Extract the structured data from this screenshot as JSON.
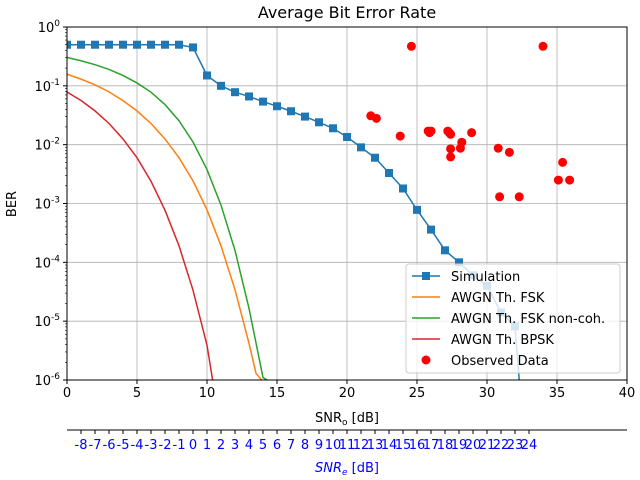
{
  "chart_data": {
    "type": "line",
    "title": "Average Bit Error Rate",
    "xlabel_main": "SNR",
    "xlabel_sub": "o",
    "xlabel_unit": " [dB]",
    "ylabel": "BER",
    "x2label_main": "SNR",
    "x2label_sub": "e",
    "x2label_unit": " [dB]",
    "xlim": [
      0,
      40
    ],
    "ylim": [
      1e-06,
      1
    ],
    "yscale": "log",
    "grid": true,
    "legend_position": "lower-right",
    "xticks": [
      0,
      5,
      10,
      15,
      20,
      25,
      30,
      35,
      40
    ],
    "yticks": [
      {
        "value": 1,
        "label": "10^0"
      },
      {
        "value": 0.1,
        "label": "10^-1"
      },
      {
        "value": 0.01,
        "label": "10^-2"
      },
      {
        "value": 0.001,
        "label": "10^-3"
      },
      {
        "value": 0.0001,
        "label": "10^-4"
      },
      {
        "value": 1e-05,
        "label": "10^-5"
      },
      {
        "value": 1e-06,
        "label": "10^-6"
      }
    ],
    "secondary_axis": {
      "color": "#0000ff",
      "ticks": [
        {
          "at": 1,
          "label": "-8"
        },
        {
          "at": 2,
          "label": "-7"
        },
        {
          "at": 3,
          "label": "-6"
        },
        {
          "at": 4,
          "label": "-5"
        },
        {
          "at": 5,
          "label": "-4"
        },
        {
          "at": 6,
          "label": "-3"
        },
        {
          "at": 7,
          "label": "-2"
        },
        {
          "at": 8,
          "label": "-1"
        },
        {
          "at": 9,
          "label": "0"
        },
        {
          "at": 10,
          "label": "1"
        },
        {
          "at": 11,
          "label": "2"
        },
        {
          "at": 12,
          "label": "3"
        },
        {
          "at": 13,
          "label": "4"
        },
        {
          "at": 14,
          "label": "5"
        },
        {
          "at": 15,
          "label": "6"
        },
        {
          "at": 16,
          "label": "7"
        },
        {
          "at": 17,
          "label": "8"
        },
        {
          "at": 18,
          "label": "9"
        },
        {
          "at": 19,
          "label": "10"
        },
        {
          "at": 20,
          "label": "11"
        },
        {
          "at": 21,
          "label": "12"
        },
        {
          "at": 22,
          "label": "13"
        },
        {
          "at": 23,
          "label": "14"
        },
        {
          "at": 24,
          "label": "15"
        },
        {
          "at": 25,
          "label": "16"
        },
        {
          "at": 26,
          "label": "17"
        },
        {
          "at": 27,
          "label": "18"
        },
        {
          "at": 28,
          "label": "19"
        },
        {
          "at": 29,
          "label": "20"
        },
        {
          "at": 30,
          "label": "21"
        },
        {
          "at": 31,
          "label": "22"
        },
        {
          "at": 32,
          "label": "23"
        },
        {
          "at": 33,
          "label": "24"
        }
      ]
    },
    "series": [
      {
        "name": "Simulation",
        "color": "#1f77b4",
        "marker": "square",
        "x": [
          0,
          1,
          2,
          3,
          4,
          5,
          6,
          7,
          8,
          9,
          10,
          11,
          12,
          13,
          14,
          15,
          16,
          17,
          18,
          19,
          20,
          21,
          22,
          23,
          24,
          25,
          26,
          27,
          28,
          29,
          30,
          31,
          32,
          32.3
        ],
        "y": [
          0.5,
          0.5,
          0.5,
          0.5,
          0.5,
          0.5,
          0.5,
          0.5,
          0.5,
          0.45,
          0.15,
          0.1,
          0.078,
          0.066,
          0.054,
          0.045,
          0.037,
          0.03,
          0.024,
          0.019,
          0.0135,
          0.009,
          0.006,
          0.0033,
          0.0018,
          0.00078,
          0.00036,
          0.00016,
          0.0001,
          6e-05,
          4e-05,
          1.4e-05,
          8.2e-06,
          1e-06
        ]
      },
      {
        "name": "AWGN Th. FSK",
        "color": "#ff7f0e",
        "marker": "none",
        "x": [
          0,
          1,
          2,
          3,
          4,
          5,
          6,
          7,
          8,
          9,
          10,
          11,
          12,
          13,
          13.5,
          13.9
        ],
        "y": [
          0.158,
          0.13,
          0.104,
          0.079,
          0.056,
          0.0375,
          0.0229,
          0.0125,
          0.006,
          0.00242,
          0.00078,
          0.000191,
          3.43e-05,
          4.2e-06,
          1.3e-06,
          1e-06
        ]
      },
      {
        "name": "AWGN Th. FSK non-coh.",
        "color": "#2ca02c",
        "marker": "none",
        "x": [
          0,
          1,
          2,
          3,
          4,
          5,
          6,
          7,
          8,
          9,
          10,
          11,
          12,
          13,
          14,
          14.3
        ],
        "y": [
          0.303,
          0.267,
          0.229,
          0.19,
          0.15,
          0.112,
          0.078,
          0.048,
          0.0255,
          0.0111,
          0.00377,
          0.00094,
          0.000159,
          1.65e-05,
          1.1e-06,
          1e-06
        ]
      },
      {
        "name": "AWGN Th. BPSK",
        "color": "#d62728",
        "marker": "none",
        "x": [
          0,
          1,
          2,
          3,
          4,
          5,
          6,
          7,
          8,
          9,
          10,
          10.4
        ],
        "y": [
          0.0786,
          0.0563,
          0.0375,
          0.0229,
          0.0125,
          0.006,
          0.00239,
          0.00077,
          0.000191,
          3.36e-05,
          3.9e-06,
          1e-06
        ]
      },
      {
        "name": "Observed Data",
        "color": "#ff0000",
        "marker": "circle",
        "type": "scatter",
        "x": [
          21.7,
          22.1,
          23.8,
          24.6,
          25.8,
          25.9,
          26.0,
          27.2,
          27.3,
          27.4,
          27.4,
          27.4,
          28.1,
          28.2,
          28.9,
          30.8,
          30.9,
          31.6,
          32.3,
          34.0,
          35.1,
          35.4,
          35.9
        ],
        "y": [
          0.031,
          0.028,
          0.014,
          0.47,
          0.017,
          0.016,
          0.017,
          0.017,
          0.016,
          0.0085,
          0.0062,
          0.015,
          0.0087,
          0.011,
          0.016,
          0.0087,
          0.0013,
          0.0074,
          0.0013,
          0.47,
          0.0025,
          0.005,
          0.0025
        ]
      }
    ]
  }
}
